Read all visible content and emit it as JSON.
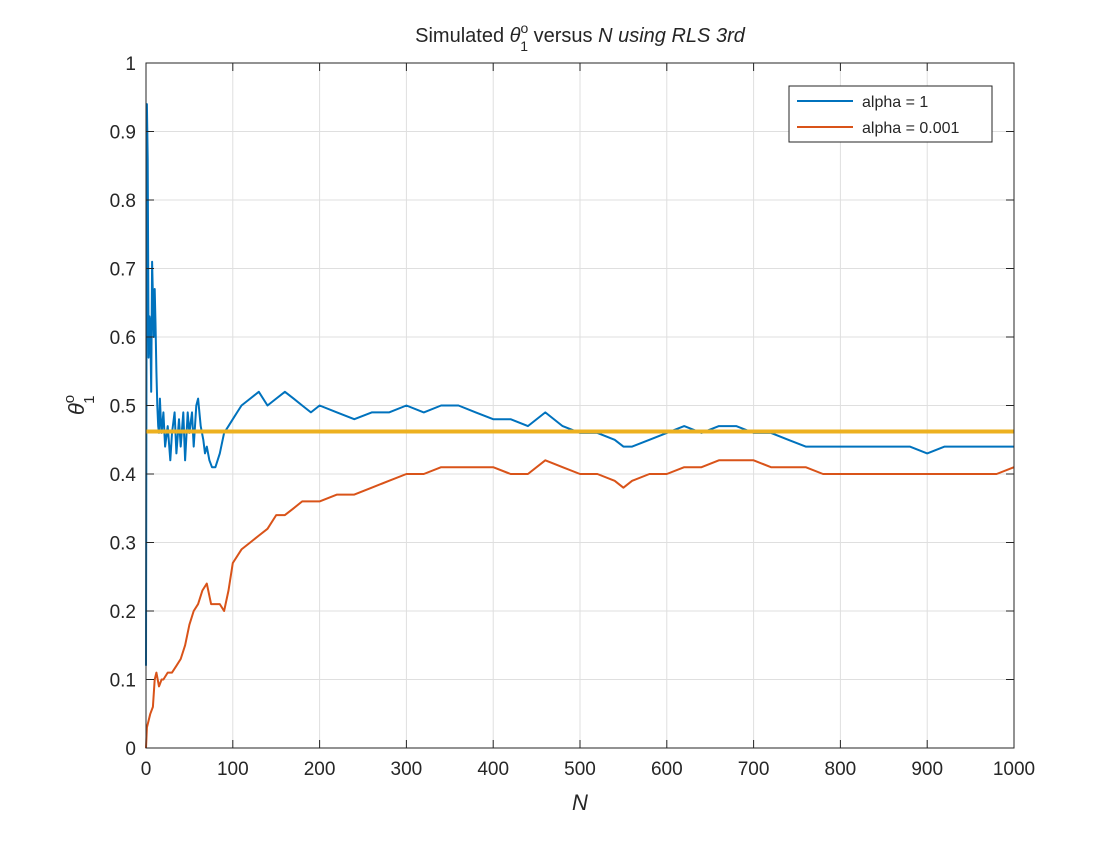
{
  "chart_data": {
    "type": "line",
    "title": {
      "prefix": "Simulated ",
      "symbol": "θ",
      "subscript": "1",
      "superscript": "o",
      "middle": " versus ",
      "var": "N",
      "suffix": " using RLS 3rd"
    },
    "xlabel": "N",
    "ylabel": {
      "symbol": "θ",
      "subscript": "1",
      "superscript": "o"
    },
    "xlim": [
      0,
      1000
    ],
    "ylim": [
      0,
      1
    ],
    "xticks": [
      "0",
      "100",
      "200",
      "300",
      "400",
      "500",
      "600",
      "700",
      "800",
      "900",
      "1000"
    ],
    "yticks": [
      "0",
      "0.1",
      "0.2",
      "0.3",
      "0.4",
      "0.5",
      "0.6",
      "0.7",
      "0.8",
      "0.9",
      "1"
    ],
    "grid": true,
    "legend_position": "top-right",
    "series": [
      {
        "name": "alpha = 1",
        "color": "#0072BD",
        "x": [
          0,
          1,
          2,
          3,
          4,
          5,
          6,
          7,
          8,
          9,
          10,
          11,
          12,
          13,
          14,
          15,
          16,
          17,
          18,
          20,
          22,
          25,
          28,
          30,
          33,
          35,
          38,
          40,
          43,
          45,
          48,
          50,
          53,
          55,
          58,
          60,
          63,
          66,
          68,
          70,
          73,
          76,
          80,
          85,
          90,
          95,
          100,
          105,
          110,
          120,
          130,
          140,
          150,
          160,
          170,
          180,
          190,
          200,
          220,
          240,
          260,
          280,
          300,
          320,
          340,
          360,
          380,
          400,
          420,
          440,
          460,
          480,
          500,
          520,
          540,
          550,
          560,
          580,
          600,
          620,
          640,
          660,
          680,
          700,
          720,
          740,
          760,
          780,
          800,
          820,
          840,
          860,
          880,
          900,
          920,
          940,
          960,
          980,
          1000
        ],
        "y": [
          0.12,
          0.94,
          0.86,
          0.57,
          0.63,
          0.62,
          0.52,
          0.71,
          0.66,
          0.6,
          0.67,
          0.62,
          0.55,
          0.5,
          0.47,
          0.46,
          0.51,
          0.48,
          0.46,
          0.49,
          0.44,
          0.47,
          0.42,
          0.46,
          0.49,
          0.43,
          0.48,
          0.44,
          0.49,
          0.42,
          0.49,
          0.46,
          0.49,
          0.44,
          0.5,
          0.51,
          0.47,
          0.45,
          0.43,
          0.44,
          0.42,
          0.41,
          0.41,
          0.43,
          0.46,
          0.47,
          0.48,
          0.49,
          0.5,
          0.51,
          0.52,
          0.5,
          0.51,
          0.52,
          0.51,
          0.5,
          0.49,
          0.5,
          0.49,
          0.48,
          0.49,
          0.49,
          0.5,
          0.49,
          0.5,
          0.5,
          0.49,
          0.48,
          0.48,
          0.47,
          0.49,
          0.47,
          0.46,
          0.46,
          0.45,
          0.44,
          0.44,
          0.45,
          0.46,
          0.47,
          0.46,
          0.47,
          0.47,
          0.46,
          0.46,
          0.45,
          0.44,
          0.44,
          0.44,
          0.44,
          0.44,
          0.44,
          0.44,
          0.43,
          0.44,
          0.44,
          0.44,
          0.44,
          0.44
        ]
      },
      {
        "name": "alpha = 0.001",
        "color": "#D95319",
        "x": [
          0,
          1,
          3,
          5,
          8,
          10,
          12,
          15,
          18,
          20,
          25,
          30,
          35,
          40,
          45,
          50,
          55,
          60,
          65,
          70,
          75,
          80,
          85,
          90,
          95,
          100,
          110,
          120,
          130,
          140,
          150,
          160,
          170,
          180,
          190,
          200,
          220,
          240,
          260,
          280,
          300,
          320,
          340,
          360,
          380,
          400,
          420,
          440,
          460,
          480,
          500,
          520,
          540,
          550,
          560,
          580,
          600,
          620,
          640,
          660,
          680,
          700,
          720,
          740,
          760,
          780,
          800,
          820,
          840,
          860,
          880,
          900,
          920,
          940,
          960,
          980,
          1000
        ],
        "y": [
          0.0,
          0.03,
          0.04,
          0.05,
          0.06,
          0.1,
          0.11,
          0.09,
          0.1,
          0.1,
          0.11,
          0.11,
          0.12,
          0.13,
          0.15,
          0.18,
          0.2,
          0.21,
          0.23,
          0.24,
          0.21,
          0.21,
          0.21,
          0.2,
          0.23,
          0.27,
          0.29,
          0.3,
          0.31,
          0.32,
          0.34,
          0.34,
          0.35,
          0.36,
          0.36,
          0.36,
          0.37,
          0.37,
          0.38,
          0.39,
          0.4,
          0.4,
          0.41,
          0.41,
          0.41,
          0.41,
          0.4,
          0.4,
          0.42,
          0.41,
          0.4,
          0.4,
          0.39,
          0.38,
          0.39,
          0.4,
          0.4,
          0.41,
          0.41,
          0.42,
          0.42,
          0.42,
          0.41,
          0.41,
          0.41,
          0.4,
          0.4,
          0.4,
          0.4,
          0.4,
          0.4,
          0.4,
          0.4,
          0.4,
          0.4,
          0.4,
          0.41
        ]
      },
      {
        "name": "",
        "color": "#EDB120",
        "x": [
          0,
          1000
        ],
        "y": [
          0.462,
          0.462
        ]
      }
    ]
  }
}
